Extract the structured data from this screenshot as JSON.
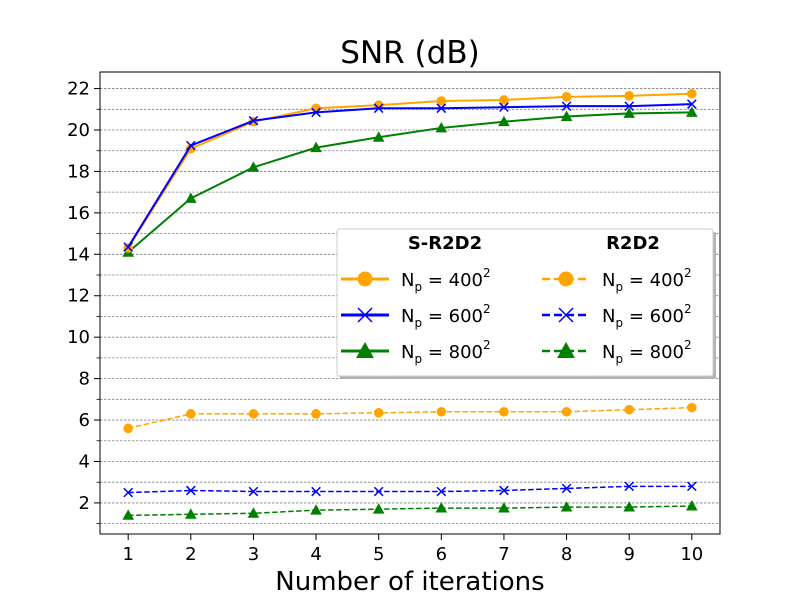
{
  "chart_data": {
    "type": "line",
    "title": "SNR (dB)",
    "xlabel": "Number of iterations",
    "ylabel": "",
    "x": [
      1,
      2,
      3,
      4,
      5,
      6,
      7,
      8,
      9,
      10
    ],
    "xlim": [
      0.55,
      10.45
    ],
    "ylim": [
      0.5,
      22.8
    ],
    "yticks": [
      2,
      4,
      6,
      8,
      10,
      12,
      14,
      16,
      18,
      20,
      22
    ],
    "xticks": [
      1,
      2,
      3,
      4,
      5,
      6,
      7,
      8,
      9,
      10
    ],
    "grid": "horizontal dashed (major and minor)",
    "legend_location": "center-right",
    "legend_groups": [
      "S-R2D2",
      "R2D2"
    ],
    "series": [
      {
        "name": "S-R2D2 Np=400^2",
        "group": "S-R2D2",
        "np": "400",
        "color": "#ffa500",
        "style": "solid",
        "marker": "circle",
        "values": [
          14.3,
          19.1,
          20.4,
          21.05,
          21.2,
          21.4,
          21.45,
          21.6,
          21.65,
          21.75
        ]
      },
      {
        "name": "S-R2D2 Np=600^2",
        "group": "S-R2D2",
        "np": "600",
        "color": "#0000ff",
        "style": "solid",
        "marker": "x",
        "values": [
          14.35,
          19.25,
          20.45,
          20.85,
          21.05,
          21.05,
          21.1,
          21.15,
          21.15,
          21.25
        ]
      },
      {
        "name": "S-R2D2 Np=800^2",
        "group": "S-R2D2",
        "np": "800",
        "color": "#008000",
        "style": "solid",
        "marker": "triangle",
        "values": [
          14.1,
          16.7,
          18.2,
          19.15,
          19.65,
          20.1,
          20.4,
          20.65,
          20.8,
          20.85
        ]
      },
      {
        "name": "R2D2 Np=400^2",
        "group": "R2D2",
        "np": "400",
        "color": "#ffa500",
        "style": "dashed",
        "marker": "circle",
        "values": [
          5.6,
          6.3,
          6.3,
          6.3,
          6.35,
          6.4,
          6.4,
          6.4,
          6.5,
          6.6
        ]
      },
      {
        "name": "R2D2 Np=600^2",
        "group": "R2D2",
        "np": "600",
        "color": "#0000ff",
        "style": "dashed",
        "marker": "x",
        "values": [
          2.5,
          2.6,
          2.55,
          2.55,
          2.55,
          2.55,
          2.6,
          2.7,
          2.8,
          2.8
        ]
      },
      {
        "name": "R2D2 Np=800^2",
        "group": "R2D2",
        "np": "800",
        "color": "#008000",
        "style": "dashed",
        "marker": "triangle",
        "values": [
          1.4,
          1.45,
          1.5,
          1.65,
          1.7,
          1.75,
          1.75,
          1.8,
          1.8,
          1.85
        ]
      }
    ],
    "legend_label_prefix": "N",
    "legend_label_sub": "p",
    "legend_label_eq": " = ",
    "legend_label_sup": "2"
  }
}
